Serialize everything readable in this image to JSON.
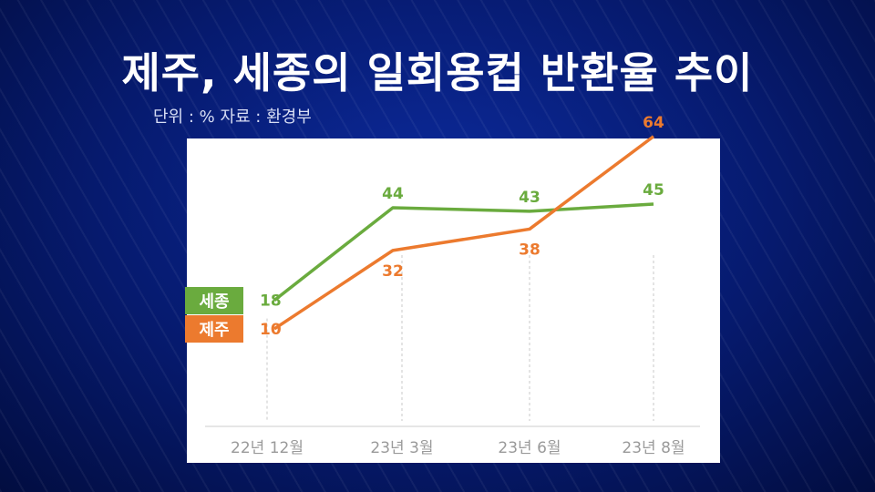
{
  "title": "제주, 세종의 일회용컵 반환율 추이",
  "subtitle": "단위 : % 자료 : 환경부",
  "chart_data": {
    "type": "line",
    "title": "제주, 세종의 일회용컵 반환율 추이",
    "categories": [
      "22년 12월",
      "23년 3월",
      "23년 6월",
      "23년 8월"
    ],
    "ylim": [
      0,
      70
    ],
    "grid": false,
    "legend_placement": "left, at series start",
    "series": [
      {
        "name": "세종",
        "values": [
          18,
          44,
          43,
          45
        ],
        "color": "#6aab3e"
      },
      {
        "name": "제주",
        "values": [
          10,
          32,
          38,
          64
        ],
        "color": "#ec7a2e"
      }
    ]
  }
}
